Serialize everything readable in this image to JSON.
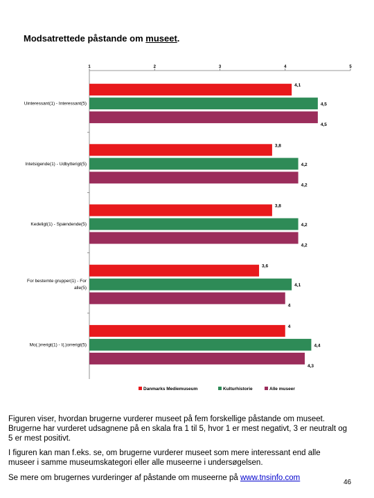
{
  "page": {
    "title_main": "Modsatrettede påstande om ",
    "title_underlined": "museet",
    "title_end": ".",
    "para1": "Figuren viser, hvordan brugerne vurderer museet på fem forskellige påstande om museet. Brugerne har vurderet udsagnene på en skala fra 1 til 5, hvor 1 er mest negativt, 3 er neutralt og 5 er mest positivt.",
    "para2": "I figuren kan man f.eks. se, om brugerne vurderer museet som mere interessant end alle museer i samme museumskategori eller alle museerne i undersøgelsen.",
    "para3_text": "Se mere om brugernes vurderinger af påstande om museerne på ",
    "para3_link": "www.tnsinfo.com",
    "page_number": "46"
  },
  "chart_data": {
    "type": "bar",
    "orientation": "horizontal",
    "categories": [
      "Uinteressant(1) - Interessant(5)",
      "Intetsigende(1) - Udbytterigt(5)",
      "Kedeligt(1) - Spændende(5)",
      "For bestemte grupper(1) - For alle(5)",
      "Mo(.)rrerigt(1) - I(.)orrerigt(5)"
    ],
    "category_lines": [
      [
        "Uinteressant(1) - Interessant(5)"
      ],
      [
        "Intetsigende(1) - Udbytterigt(5)"
      ],
      [
        "Kedeligt(1) - Spændende(5)"
      ],
      [
        "For bestemte grupper(1) - For",
        "alle(5)"
      ],
      [
        "Mo(.)rrerigt(1) - I(.)orrerigt(5)"
      ]
    ],
    "series": [
      {
        "name": "Danmarks Mediemuseum",
        "color": "#e8191c",
        "values": [
          4.1,
          3.8,
          3.8,
          3.6,
          4.0
        ],
        "labels": [
          "4,1",
          "3,8",
          "3,8",
          "3,6",
          "4"
        ]
      },
      {
        "name": "Kulturhistorie",
        "color": "#2e8b57",
        "values": [
          4.5,
          4.2,
          4.2,
          4.1,
          4.4
        ],
        "labels": [
          "4,5",
          "4,2",
          "4,2",
          "4,1",
          "4,4"
        ]
      },
      {
        "name": "Alle museer",
        "color": "#9b2d5b",
        "values": [
          4.5,
          4.2,
          4.2,
          4.0,
          4.3
        ],
        "labels": [
          "4,5",
          "4,2",
          "4,2",
          "4",
          "4,3"
        ]
      }
    ],
    "xticks": [
      "1",
      "2",
      "3",
      "4",
      "5"
    ],
    "xlim": [
      1,
      5
    ],
    "legend_position": "bottom",
    "grid": false
  }
}
